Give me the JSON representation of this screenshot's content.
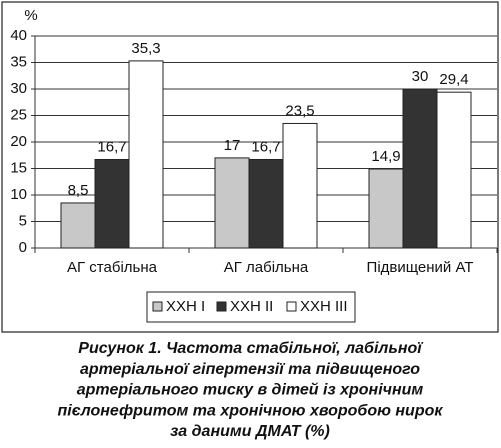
{
  "chart_data": {
    "type": "bar",
    "y_unit": "%",
    "categories": [
      "АГ стабільна",
      "АГ лабільна",
      "Підвищений АТ"
    ],
    "series": [
      {
        "name": "ХХН I",
        "color": "#c8c8c8",
        "values": [
          8.5,
          17,
          14.9
        ],
        "value_labels": [
          "8,5",
          "17",
          "14,9"
        ]
      },
      {
        "name": "ХХН II",
        "color": "#333333",
        "values": [
          16.7,
          16.7,
          30
        ],
        "value_labels": [
          "16,7",
          "16,7",
          "30"
        ]
      },
      {
        "name": "ХХН III",
        "color": "#ffffff",
        "values": [
          35.3,
          23.5,
          29.4
        ],
        "value_labels": [
          "35,3",
          "23,5",
          "29,4"
        ]
      }
    ],
    "ylim": [
      0,
      40
    ],
    "yticks": [
      0,
      5,
      10,
      15,
      20,
      25,
      30,
      35,
      40
    ],
    "grid": true,
    "legend": "bottom",
    "caption": [
      "Рисунок 1. Частота стабільної, лабільної",
      "артеріальної гіпертензії та підвищеного",
      "артеріального тиску в дітей із хронічним",
      "пієлонефритом та хронічною хворобою нирок",
      "за даними ДМАТ (%)"
    ]
  }
}
